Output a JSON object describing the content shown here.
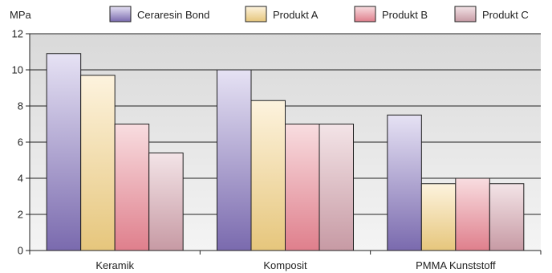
{
  "chart_data": {
    "type": "bar",
    "ylabel": "MPa",
    "categories": [
      "Keramik",
      "Komposit",
      "PMMA Kunststoff"
    ],
    "series": [
      {
        "name": "Ceraresin Bond",
        "values": [
          10.9,
          10.0,
          7.5
        ]
      },
      {
        "name": "Produkt A",
        "values": [
          9.7,
          8.3,
          3.7
        ]
      },
      {
        "name": "Produkt B",
        "values": [
          7.0,
          7.0,
          4.0
        ]
      },
      {
        "name": "Produkt C",
        "values": [
          5.4,
          7.0,
          3.7
        ]
      }
    ],
    "ylim": [
      0,
      12
    ],
    "yticks": [
      0,
      2,
      4,
      6,
      8,
      10,
      12
    ],
    "grid": true,
    "legend_position": "top",
    "colors": {
      "plot_background_top": "#d9d9d9",
      "plot_background_bottom": "#f4f4f4",
      "series": [
        {
          "light": "#e6e2f4",
          "dark": "#7a6aae"
        },
        {
          "light": "#fdf3de",
          "dark": "#e6c67c"
        },
        {
          "light": "#f8dde0",
          "dark": "#df7f8c"
        },
        {
          "light": "#f3e4e7",
          "dark": "#c79aa4"
        }
      ]
    }
  }
}
